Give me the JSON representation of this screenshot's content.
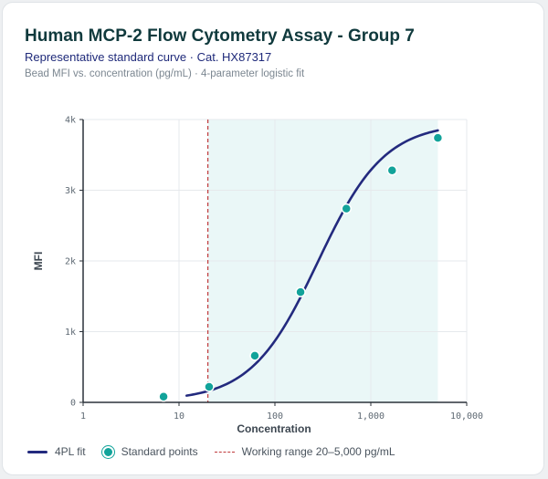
{
  "header": {
    "title": "Human MCP-2 Flow Cytometry Assay - Group 7",
    "subtitle": "Representative standard curve · Cat. HX87317",
    "caption": "Bead MFI vs. concentration (pg/mL) · 4-parameter logistic fit"
  },
  "colors": {
    "fit_line": "#232a7e",
    "points": "#12a39a",
    "working_range": "#c0393b",
    "band_fill": "#eaf7f7"
  },
  "legend": {
    "fit": "4PL fit",
    "points": "Standard points",
    "range": "Working range 20–5,000 pg/mL"
  },
  "chart_data": {
    "type": "scatter",
    "xlabel": "Concentration",
    "ylabel": "MFI",
    "x_scale": "log",
    "xlim": [
      1,
      10000
    ],
    "ylim": [
      0,
      4000
    ],
    "x_ticks": [
      1,
      10,
      100,
      1000,
      10000
    ],
    "x_tick_labels": [
      "1",
      "10",
      "100",
      "1,000",
      "10,000"
    ],
    "y_ticks": [
      0,
      1000,
      2000,
      3000,
      4000
    ],
    "y_tick_labels": [
      "0",
      "1k",
      "2k",
      "3k",
      "4k"
    ],
    "grid": true,
    "series": [
      {
        "name": "Standard points",
        "kind": "points",
        "x": [
          6.9,
          20.6,
          61.7,
          185,
          556,
          1667,
          5000
        ],
        "y": [
          80,
          220,
          660,
          1560,
          2740,
          3280,
          3740
        ]
      },
      {
        "name": "4PL fit",
        "kind": "curve",
        "model": "4PL",
        "params": {
          "bottom": 20,
          "top": 3950,
          "ec50": 280,
          "hill": 1.25
        },
        "x_range": [
          12,
          5000
        ]
      }
    ],
    "working_range": {
      "x_min": 20,
      "x_max": 5000,
      "label": "Working range 20–5,000 pg/mL"
    }
  }
}
